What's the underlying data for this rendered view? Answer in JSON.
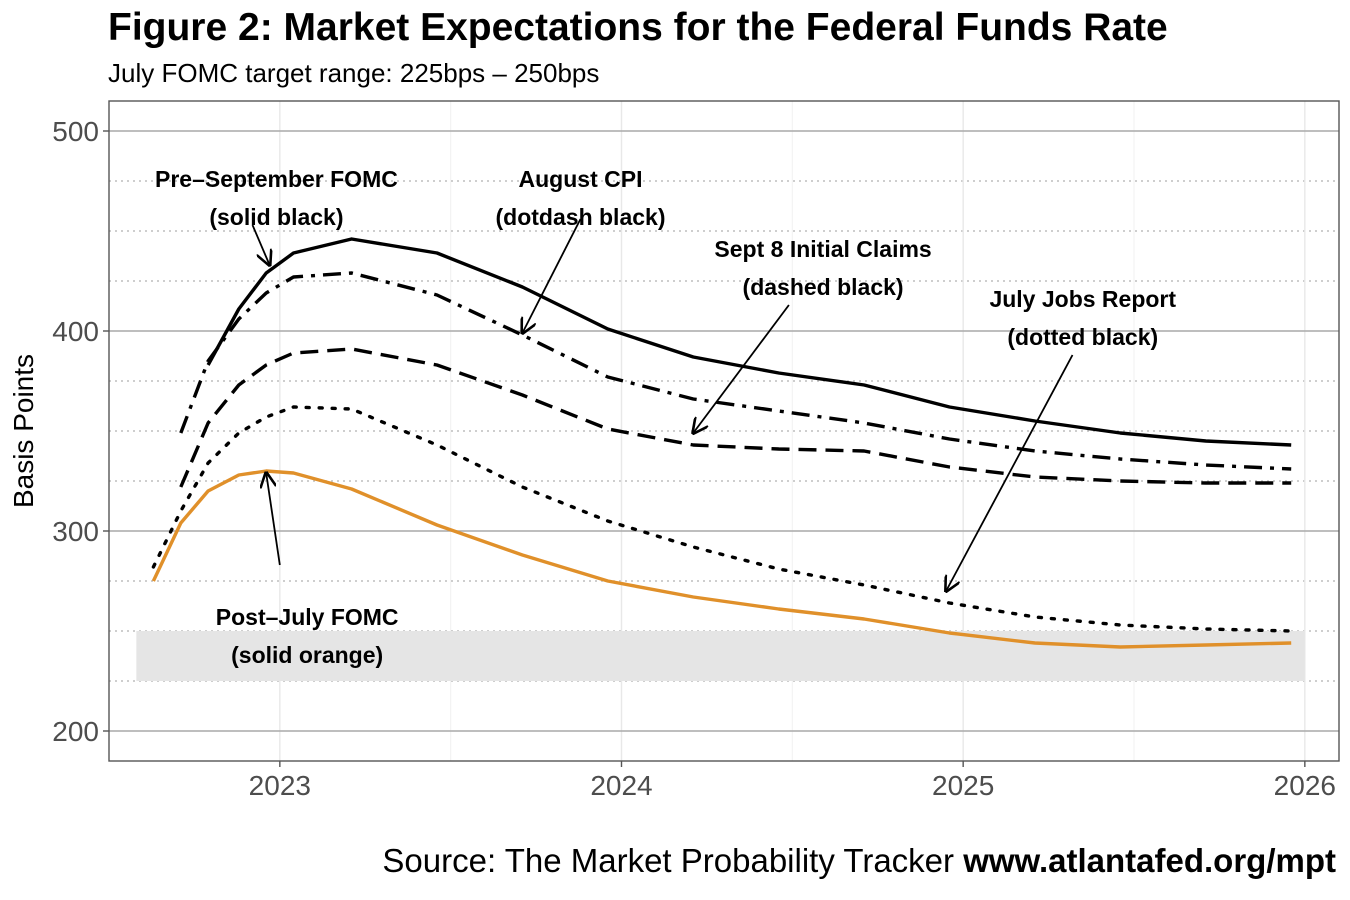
{
  "title": "Figure 2: Market Expectations for the Federal Funds Rate",
  "subtitle": "July FOMC target range: 225bps – 250bps",
  "source": {
    "prefix": "Source: The Market Probability Tracker ",
    "url": "www.atlantafed.org/mpt"
  },
  "chart_data": {
    "type": "line",
    "ylabel": "Basis Points",
    "xlabel": "",
    "xlim": [
      2022.5,
      2026.1
    ],
    "ylim": [
      185,
      515
    ],
    "x_ticks": [
      2023,
      2024,
      2025,
      2026
    ],
    "x_tick_labels": [
      "2023",
      "2024",
      "2025",
      "2026"
    ],
    "y_ticks": [
      200,
      300,
      400,
      500
    ],
    "y_tick_labels": [
      "200",
      "300",
      "400",
      "500"
    ],
    "grid": true,
    "target_range_band": {
      "low": 225,
      "high": 250,
      "x_start": 2022.58,
      "x_end": 2026.0,
      "color": "#e5e5e5"
    },
    "series": [
      {
        "label": "Pre–September FOMC\n(solid black)",
        "style": "solid",
        "color": "#000000",
        "x": [
          2022.79,
          2022.88,
          2022.96,
          2023.04,
          2023.21,
          2023.46,
          2023.71,
          2023.96,
          2024.21,
          2024.46,
          2024.71,
          2024.96,
          2025.21,
          2025.46,
          2025.71,
          2025.96
        ],
        "y": [
          383,
          411,
          429,
          439,
          446,
          439,
          422,
          401,
          387,
          379,
          373,
          362,
          355,
          349,
          345,
          343
        ]
      },
      {
        "label": "August CPI\n(dotdash black)",
        "style": "dotdash",
        "color": "#000000",
        "x": [
          2022.71,
          2022.79,
          2022.88,
          2022.96,
          2023.04,
          2023.21,
          2023.46,
          2023.71,
          2023.96,
          2024.21,
          2024.46,
          2024.71,
          2024.96,
          2025.21,
          2025.46,
          2025.71,
          2025.96
        ],
        "y": [
          349,
          385,
          406,
          419,
          427,
          429,
          418,
          398,
          377,
          366,
          360,
          354,
          346,
          340,
          336,
          333,
          331
        ]
      },
      {
        "label": "Sept 8 Initial Claims\n(dashed black)",
        "style": "dashed",
        "color": "#000000",
        "x": [
          2022.71,
          2022.79,
          2022.88,
          2022.96,
          2023.04,
          2023.21,
          2023.46,
          2023.71,
          2023.96,
          2024.21,
          2024.46,
          2024.71,
          2024.96,
          2025.21,
          2025.46,
          2025.71,
          2025.96
        ],
        "y": [
          322,
          354,
          373,
          383,
          389,
          391,
          383,
          368,
          351,
          343,
          341,
          340,
          332,
          327,
          325,
          324,
          324
        ]
      },
      {
        "label": "July Jobs Report\n(dotted black)",
        "style": "dotted",
        "color": "#000000",
        "x": [
          2022.63,
          2022.71,
          2022.79,
          2022.88,
          2022.96,
          2023.04,
          2023.21,
          2023.46,
          2023.71,
          2023.96,
          2024.21,
          2024.46,
          2024.71,
          2024.96,
          2025.21,
          2025.46,
          2025.71,
          2025.96
        ],
        "y": [
          282,
          310,
          334,
          349,
          357,
          362,
          361,
          343,
          322,
          305,
          292,
          281,
          273,
          264,
          257,
          253,
          251,
          250
        ]
      },
      {
        "label": "Post–July FOMC\n(solid orange)",
        "style": "solid",
        "color": "#e0902a",
        "x": [
          2022.63,
          2022.71,
          2022.79,
          2022.88,
          2022.96,
          2023.04,
          2023.21,
          2023.46,
          2023.71,
          2023.96,
          2024.21,
          2024.46,
          2024.71,
          2024.96,
          2025.21,
          2025.46,
          2025.71,
          2025.96
        ],
        "y": [
          275,
          304,
          320,
          328,
          330,
          329,
          321,
          303,
          288,
          275,
          267,
          261,
          256,
          249,
          244,
          242,
          243,
          244
        ]
      }
    ],
    "annotations": [
      {
        "line1": "Pre–September FOMC",
        "line2": "(solid black)",
        "tx": 2022.99,
        "ty": 476,
        "ax0": 2022.92,
        "ay0": 453,
        "ax1": 2022.97,
        "ay1": 433
      },
      {
        "line1": "August CPI",
        "line2": "(dotdash black)",
        "tx": 2023.88,
        "ty": 476,
        "ax0": 2023.88,
        "ay0": 456,
        "ax1": 2023.71,
        "ay1": 399
      },
      {
        "line1": "Sept 8 Initial Claims",
        "line2": "(dashed black)",
        "tx": 2024.59,
        "ty": 341,
        "ax0": 2024.49,
        "ay0": 413,
        "ax1": 2024.21,
        "ay1": 349,
        "label_ty": 441
      },
      {
        "line1": "July Jobs Report",
        "line2": "(dotted black)",
        "tx": 2025.35,
        "ty": 416,
        "ax0": 2025.32,
        "ay0": 388,
        "ax1": 2024.95,
        "ay1": 270
      },
      {
        "line1": "Post–July FOMC",
        "line2": "(solid orange)",
        "tx": 2023.08,
        "ty": 257,
        "ax0": 2023.0,
        "ay0": 283,
        "ax1": 2022.96,
        "ay1": 329
      }
    ]
  }
}
